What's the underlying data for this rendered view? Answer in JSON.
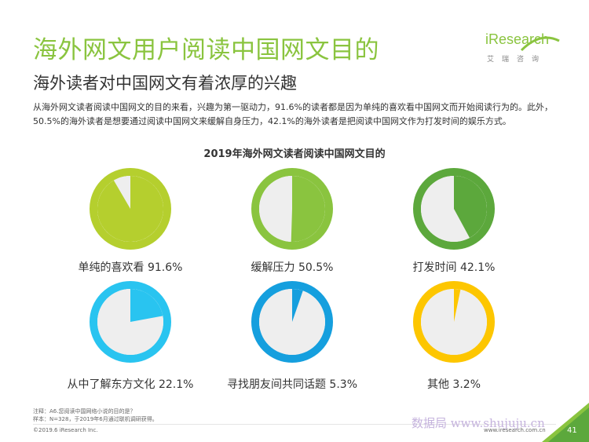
{
  "title": "海外网文用户阅读中国网文目的",
  "subtitle": "海外读者对中国网文有着浓厚的兴趣",
  "description": "从海外网文读者阅读中国网文的目的来看，兴趣为第一驱动力，91.6%的读者都是因为单纯的喜欢看中国网文而开始阅读行为的。此外，50.5%的海外读者是想要通过阅读中国网文来缓解自身压力，42.1%的海外读者是把阅读中国网文作为打发时间的娱乐方式。",
  "logo": {
    "wordmark": "iResearch",
    "sub": "艾瑞咨询"
  },
  "chart_data": {
    "type": "pie",
    "title": "2019年海外网文读者阅读中国网文目的",
    "unit": "%",
    "items": [
      {
        "label": "单纯的喜欢看 91.6%",
        "value": 91.6,
        "color": "#b5cf2e"
      },
      {
        "label": "缓解压力 50.5%",
        "value": 50.5,
        "color": "#8ac43f"
      },
      {
        "label": "打发时间 42.1%",
        "value": 42.1,
        "color": "#5ca83c"
      },
      {
        "label": "从中了解东方文化 22.1%",
        "value": 22.1,
        "color": "#29c4f0"
      },
      {
        "label": "寻找朋友间共同话题 5.3%",
        "value": 5.3,
        "color": "#159fde"
      },
      {
        "label": "其他 3.2%",
        "value": 3.2,
        "color": "#fdc600"
      }
    ],
    "remainder_color": "#eeeeee"
  },
  "footnote": {
    "line1": "注释：A6.您阅读中国网络小说的目的是？",
    "line2": "样本：N=328，于2019年6月通过联机调研获得。"
  },
  "footer": {
    "copyright": "©2019.6 iResearch Inc.",
    "site": "www.iresearch.com.cn",
    "page": "41"
  },
  "watermark": "数据局 www.shujuju.cn"
}
